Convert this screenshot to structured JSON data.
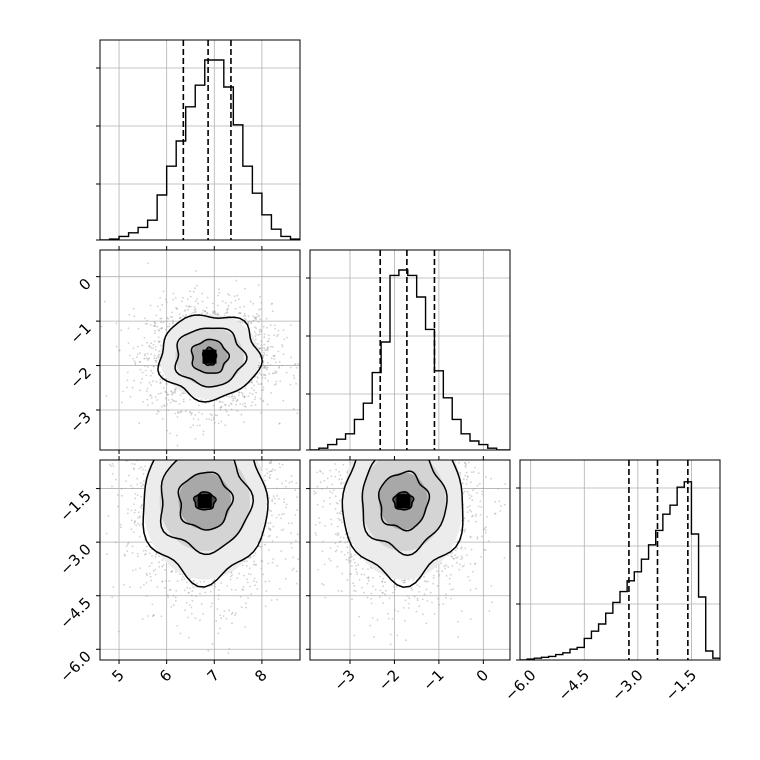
{
  "chart_data": {
    "type": "corner",
    "grid": true,
    "quantile_line_style": "dashed",
    "variables": [
      {
        "id": "p0",
        "range": [
          4.6,
          8.8
        ],
        "ticks": [
          "5",
          "6",
          "7",
          "8"
        ],
        "tick_values": [
          5,
          6,
          7,
          8
        ],
        "quantiles": [
          6.35,
          6.87,
          7.35
        ],
        "histogram": {
          "edges": [
            4.6,
            4.8,
            5.0,
            5.2,
            5.4,
            5.6,
            5.8,
            6.0,
            6.2,
            6.4,
            6.6,
            6.8,
            7.0,
            7.2,
            7.4,
            7.6,
            7.8,
            8.0,
            8.2,
            8.4,
            8.6,
            8.8
          ],
          "counts": [
            0.0,
            0.005,
            0.02,
            0.04,
            0.07,
            0.11,
            0.25,
            0.41,
            0.55,
            0.74,
            0.86,
            1.0,
            1.0,
            0.85,
            0.64,
            0.41,
            0.26,
            0.14,
            0.06,
            0.02,
            0.005
          ]
        }
      },
      {
        "id": "p1",
        "range": [
          -3.9,
          0.6
        ],
        "ticks": [
          "0",
          "-1",
          "-2",
          "-3"
        ],
        "tick_values": [
          0,
          -1,
          -2,
          -3
        ],
        "quantiles": [
          -2.32,
          -1.72,
          -1.1
        ],
        "histogram": {
          "edges": [
            -3.9,
            -3.7,
            -3.5,
            -3.3,
            -3.1,
            -2.9,
            -2.7,
            -2.5,
            -2.3,
            -2.1,
            -1.9,
            -1.7,
            -1.5,
            -1.3,
            -1.1,
            -0.9,
            -0.7,
            -0.5,
            -0.3,
            -0.1,
            0.1,
            0.3,
            0.6
          ],
          "counts": [
            0.0,
            0.01,
            0.03,
            0.06,
            0.09,
            0.17,
            0.26,
            0.43,
            0.6,
            0.97,
            1.0,
            0.97,
            0.85,
            0.67,
            0.44,
            0.29,
            0.17,
            0.09,
            0.05,
            0.03,
            0.01,
            0.0
          ]
        }
      },
      {
        "id": "p2",
        "range": [
          -6.3,
          -0.7
        ],
        "ticks": [
          "-1.5",
          "-3.0",
          "-4.5",
          "-6.0"
        ],
        "tick_values": [
          -1.5,
          -3.0,
          -4.5,
          -6.0
        ],
        "quantiles": [
          -3.25,
          -2.45,
          -1.6
        ],
        "histogram": {
          "edges": [
            -6.3,
            -6.1,
            -5.9,
            -5.7,
            -5.5,
            -5.3,
            -5.1,
            -4.9,
            -4.7,
            -4.5,
            -4.3,
            -4.1,
            -3.9,
            -3.7,
            -3.5,
            -3.3,
            -3.1,
            -2.9,
            -2.7,
            -2.5,
            -2.3,
            -2.1,
            -1.9,
            -1.7,
            -1.5,
            -1.3,
            -1.1,
            -0.9,
            -0.7
          ],
          "counts": [
            0.0,
            0.005,
            0.01,
            0.015,
            0.02,
            0.03,
            0.04,
            0.06,
            0.07,
            0.12,
            0.16,
            0.2,
            0.26,
            0.32,
            0.38,
            0.44,
            0.49,
            0.56,
            0.64,
            0.72,
            0.81,
            0.86,
            0.96,
            0.99,
            0.7,
            0.35,
            0.05,
            0.01
          ]
        }
      }
    ],
    "panels_2d": [
      {
        "row": 1,
        "col": 0,
        "x_var": "p0",
        "y_var": "p1",
        "density_peak": [
          6.9,
          -1.8
        ],
        "contour_levels": [
          {
            "rx": 1.05,
            "ry": 0.95
          },
          {
            "rx": 0.72,
            "ry": 0.66
          },
          {
            "rx": 0.38,
            "ry": 0.38
          },
          {
            "rx": 0.14,
            "ry": 0.2
          }
        ]
      },
      {
        "row": 2,
        "col": 0,
        "x_var": "p0",
        "y_var": "p2",
        "density_peak": [
          6.8,
          -1.85
        ],
        "contour_levels": [
          {
            "rx": 1.3,
            "ry": 2.2
          },
          {
            "rx": 0.95,
            "ry": 1.4
          },
          {
            "rx": 0.55,
            "ry": 0.8
          },
          {
            "rx": 0.22,
            "ry": 0.25
          }
        ]
      },
      {
        "row": 2,
        "col": 1,
        "x_var": "p1",
        "y_var": "p2",
        "density_peak": [
          -1.8,
          -1.85
        ],
        "contour_levels": [
          {
            "rx": 1.35,
            "ry": 2.2
          },
          {
            "rx": 0.95,
            "ry": 1.4
          },
          {
            "rx": 0.55,
            "ry": 0.8
          },
          {
            "rx": 0.22,
            "ry": 0.25
          }
        ]
      }
    ],
    "y_tick_labels": {
      "row1": {
        "var": "p1",
        "labels": [
          "0",
          "-1",
          "-2",
          "-3"
        ],
        "values": [
          0,
          -1,
          -2,
          -3
        ]
      },
      "row2": {
        "var": "p2",
        "labels": [
          "-1.5",
          "-3.0",
          "-4.5",
          "-6.0"
        ],
        "values": [
          -1.5,
          -3.0,
          -4.5,
          -6.0
        ]
      }
    },
    "x_tick_labels": {
      "col0": {
        "var": "p0",
        "labels": [
          "5",
          "6",
          "7",
          "8"
        ],
        "values": [
          5,
          6,
          7,
          8
        ]
      },
      "col1": {
        "var": "p1",
        "labels": [
          "-3",
          "-2",
          "-1",
          "0"
        ],
        "values": [
          -3,
          -2,
          -1,
          0
        ]
      },
      "col2": {
        "var": "p2",
        "labels": [
          "-6.0",
          "-4.5",
          "-3.0",
          "-1.5"
        ],
        "values": [
          -6.0,
          -4.5,
          -3.0,
          -1.5
        ]
      }
    }
  }
}
